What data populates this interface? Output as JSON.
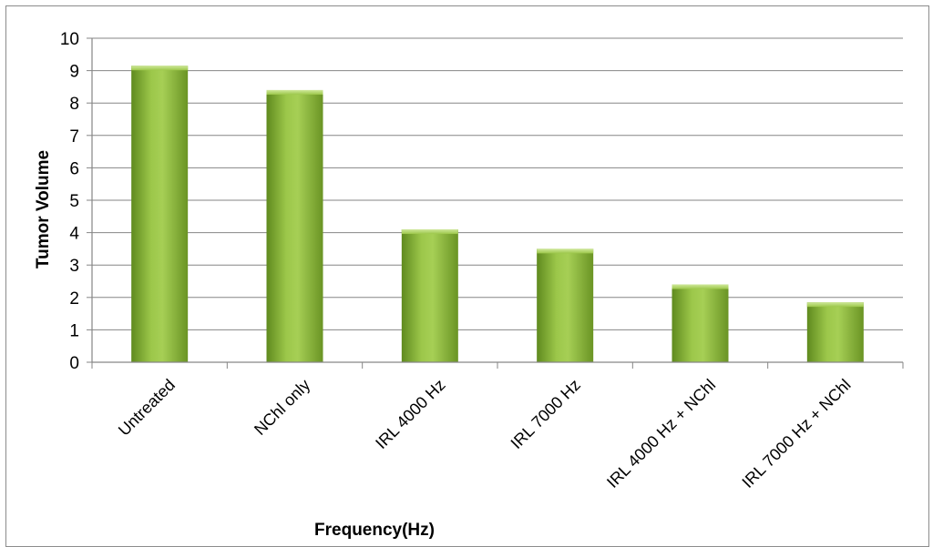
{
  "chart_data": {
    "type": "bar",
    "title": "",
    "xlabel": "Frequency(Hz)",
    "ylabel": "Tumor Volume",
    "categories": [
      "Untreated",
      "NChl only",
      "IRL 4000 Hz",
      "IRL 7000 Hz",
      "IRL 4000 Hz + NChl",
      "IRL 7000 Hz + NChl"
    ],
    "values": [
      9.15,
      8.4,
      4.1,
      3.5,
      2.4,
      1.85
    ],
    "ylim": [
      0,
      10
    ],
    "yticks": [
      "0",
      "1",
      "2",
      "3",
      "4",
      "5",
      "6",
      "7",
      "8",
      "9",
      "10"
    ],
    "grid": true,
    "legend": "none",
    "bar_color": "#8db83a",
    "bar_color_dark": "#5f8a1e",
    "bar_color_light": "#b5d96a"
  }
}
